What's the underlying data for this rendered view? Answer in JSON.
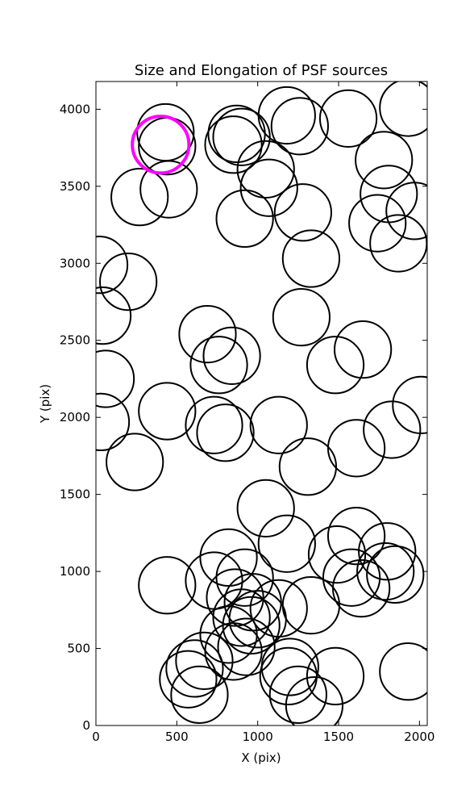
{
  "chart_data": {
    "type": "scatter",
    "title": "Size and Elongation of PSF sources",
    "xlabel": "X (pix)",
    "ylabel": "Y (pix)",
    "xlim": [
      0,
      2048
    ],
    "ylim": [
      0,
      4180
    ],
    "xticks": [
      0,
      500,
      1000,
      1500,
      2000
    ],
    "yticks": [
      0,
      500,
      1000,
      1500,
      2000,
      2500,
      3000,
      3500,
      4000
    ],
    "grid": false,
    "marker": "open circle",
    "marker_radius": 175,
    "series": [
      {
        "color": "#000000",
        "points": [
          [
            430,
            3850
          ],
          [
            440,
            3760
          ],
          [
            450,
            3480
          ],
          [
            270,
            3430
          ],
          [
            870,
            3840
          ],
          [
            850,
            3770
          ],
          [
            900,
            3820
          ],
          [
            1050,
            3610
          ],
          [
            1070,
            3490
          ],
          [
            1180,
            3960
          ],
          [
            1260,
            3890
          ],
          [
            1560,
            3940
          ],
          [
            1930,
            4010
          ],
          [
            1780,
            3670
          ],
          [
            1810,
            3450
          ],
          [
            1970,
            3340
          ],
          [
            1740,
            3260
          ],
          [
            1870,
            3130
          ],
          [
            920,
            3290
          ],
          [
            1280,
            3330
          ],
          [
            1330,
            3030
          ],
          [
            20,
            2990
          ],
          [
            200,
            2880
          ],
          [
            40,
            2660
          ],
          [
            1270,
            2650
          ],
          [
            690,
            2540
          ],
          [
            760,
            2340
          ],
          [
            840,
            2400
          ],
          [
            1480,
            2340
          ],
          [
            1650,
            2440
          ],
          [
            60,
            2250
          ],
          [
            30,
            1970
          ],
          [
            440,
            2040
          ],
          [
            730,
            1950
          ],
          [
            800,
            1900
          ],
          [
            1130,
            1950
          ],
          [
            1310,
            1680
          ],
          [
            1610,
            1800
          ],
          [
            1830,
            1920
          ],
          [
            2010,
            2080
          ],
          [
            240,
            1710
          ],
          [
            1050,
            1410
          ],
          [
            1180,
            1180
          ],
          [
            1490,
            1110
          ],
          [
            1610,
            1230
          ],
          [
            1580,
            960
          ],
          [
            1640,
            890
          ],
          [
            1800,
            1130
          ],
          [
            1790,
            1000
          ],
          [
            1850,
            980
          ],
          [
            440,
            910
          ],
          [
            730,
            940
          ],
          [
            820,
            1090
          ],
          [
            920,
            960
          ],
          [
            860,
            830
          ],
          [
            970,
            800
          ],
          [
            1130,
            760
          ],
          [
            1330,
            780
          ],
          [
            900,
            700
          ],
          [
            820,
            590
          ],
          [
            960,
            650
          ],
          [
            1000,
            690
          ],
          [
            930,
            510
          ],
          [
            850,
            480
          ],
          [
            570,
            300
          ],
          [
            610,
            370
          ],
          [
            670,
            420
          ],
          [
            640,
            200
          ],
          [
            1200,
            380
          ],
          [
            1190,
            320
          ],
          [
            1250,
            200
          ],
          [
            1350,
            130
          ],
          [
            1480,
            320
          ],
          [
            1930,
            350
          ]
        ]
      },
      {
        "color": "#ff00ff",
        "points": [
          [
            400,
            3770
          ]
        ]
      }
    ]
  }
}
